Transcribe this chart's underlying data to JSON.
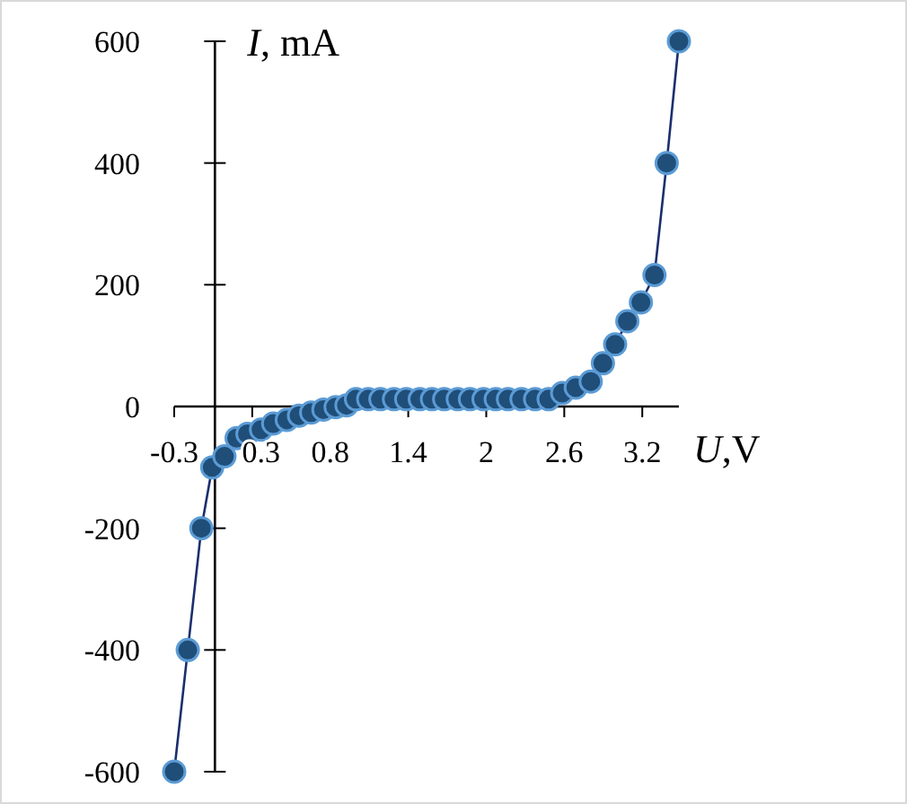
{
  "chart_data": {
    "type": "line",
    "xlabel": "U,V",
    "ylabel": "I, mA",
    "x": [
      -0.3,
      -0.2,
      -0.1,
      -0.02,
      0.07,
      0.16,
      0.24,
      0.34,
      0.43,
      0.53,
      0.62,
      0.71,
      0.8,
      0.89,
      0.97,
      1.04,
      1.13,
      1.22,
      1.32,
      1.41,
      1.51,
      1.6,
      1.69,
      1.79,
      1.88,
      1.98,
      2.07,
      2.16,
      2.26,
      2.36,
      2.46,
      2.56,
      2.66,
      2.77,
      2.86,
      2.95,
      3.04,
      3.14,
      3.24,
      3.33,
      3.42
    ],
    "series": [
      {
        "color": "#1f4e79",
        "values": [
          -600,
          -400,
          -200,
          -100,
          -82,
          -52,
          -45,
          -38,
          -28,
          -22,
          -15,
          -10,
          -5,
          -1,
          2,
          12,
          12,
          12,
          12,
          12,
          12,
          12,
          12,
          12,
          12,
          12,
          12,
          12,
          12,
          12,
          12,
          22,
          31,
          41,
          71,
          102,
          140,
          171,
          216,
          400,
          600
        ]
      }
    ],
    "xlim": [
      -0.3,
      3.42
    ],
    "ylim": [
      -600,
      600
    ],
    "xticks": [
      -0.3,
      {
        "value": 0.275,
        "label": "0.3"
      },
      {
        "value": 0.85,
        "label": "0.8"
      },
      {
        "value": 1.425,
        "label": "1.4"
      },
      2,
      {
        "value": 2.575,
        "label": "2.6"
      },
      {
        "value": 3.15,
        "label": "3.2"
      }
    ],
    "yticks": [
      -600,
      -400,
      -200,
      0,
      200,
      400,
      600
    ],
    "grid": false,
    "marker": "circle",
    "line_style": "solid"
  }
}
